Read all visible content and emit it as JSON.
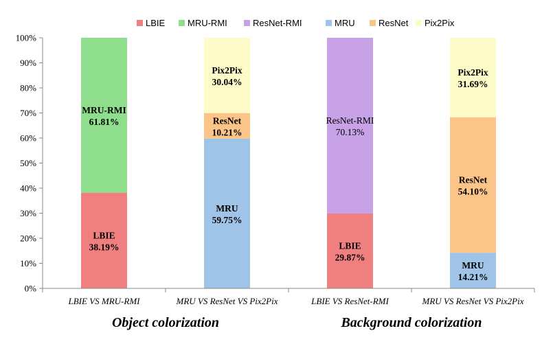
{
  "chart_data": {
    "type": "stacked-bar-100",
    "legend": {
      "position": "top",
      "entries": [
        {
          "name": "LBIE",
          "color": "#f08080"
        },
        {
          "name": "MRU-RMI",
          "color": "#8ede8e"
        },
        {
          "name": "ResNet-RMI",
          "color": "#c8a2e6"
        },
        {
          "name": "MRU",
          "color": "#a0c4e8"
        },
        {
          "name": "ResNet",
          "color": "#fbc58a"
        },
        {
          "name": "Pix2Pix",
          "color": "#fdfbc8"
        }
      ]
    },
    "y_ticks": [
      "0%",
      "10%",
      "20%",
      "30%",
      "40%",
      "50%",
      "60%",
      "70%",
      "80%",
      "90%",
      "100%"
    ],
    "ylim": [
      0,
      100
    ],
    "grid": false,
    "categories": [
      "LBIE VS MRU-RMI",
      "MRU VS ResNet VS Pix2Pix",
      "LBIE VS ResNet-RMI",
      "MRU VS ResNet VS Pix2Pix"
    ],
    "groups": [
      {
        "label": "Object colorization",
        "categories": [
          0,
          1
        ]
      },
      {
        "label": "Background colorization",
        "categories": [
          2,
          3
        ]
      }
    ],
    "bars": [
      {
        "segments": [
          {
            "series": "LBIE",
            "value": 38.19,
            "label": "LBIE",
            "value_label": "38.19%",
            "bold": true
          },
          {
            "series": "MRU-RMI",
            "value": 61.81,
            "label": "MRU-RMI",
            "value_label": "61.81%",
            "bold": true
          }
        ]
      },
      {
        "segments": [
          {
            "series": "MRU",
            "value": 59.75,
            "label": "MRU",
            "value_label": "59.75%",
            "bold": true
          },
          {
            "series": "ResNet",
            "value": 10.21,
            "label": "ResNet",
            "value_label": "10.21%",
            "bold": true
          },
          {
            "series": "Pix2Pix",
            "value": 30.04,
            "label": "Pix2Pix",
            "value_label": "30.04%",
            "bold": true
          }
        ]
      },
      {
        "segments": [
          {
            "series": "LBIE",
            "value": 29.87,
            "label": "LBIE",
            "value_label": "29.87%",
            "bold": true
          },
          {
            "series": "ResNet-RMI",
            "value": 70.13,
            "label": "ResNet-RMI",
            "value_label": "70.13%",
            "bold": false
          }
        ]
      },
      {
        "segments": [
          {
            "series": "MRU",
            "value": 14.21,
            "label": "MRU",
            "value_label": "14.21%",
            "bold": true
          },
          {
            "series": "ResNet",
            "value": 54.1,
            "label": "ResNet",
            "value_label": "54.10%",
            "bold": true
          },
          {
            "series": "Pix2Pix",
            "value": 31.69,
            "label": "Pix2Pix",
            "value_label": "31.69%",
            "bold": true
          }
        ]
      }
    ]
  }
}
